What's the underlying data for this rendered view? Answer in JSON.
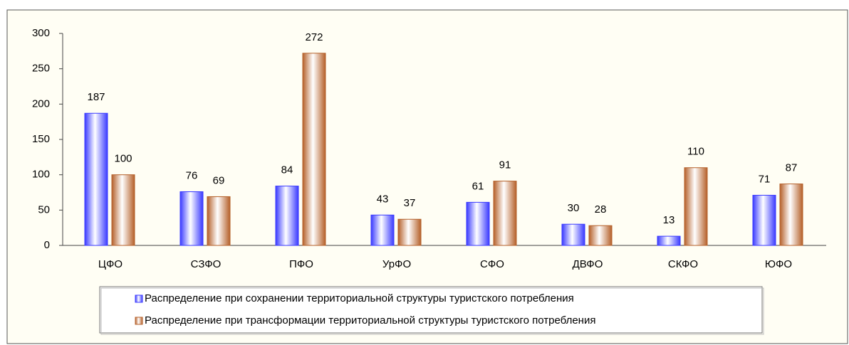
{
  "chart_data": {
    "type": "bar",
    "categories": [
      "ЦФО",
      "СЗФО",
      "ПФО",
      "УрФО",
      "СФО",
      "ДВФО",
      "СКФО",
      "ЮФО"
    ],
    "series": [
      {
        "name": "Распределение при сохранении территориальной структуры туристского потребления",
        "color": "#3a3aff",
        "values": [
          187,
          76,
          84,
          43,
          61,
          30,
          13,
          71
        ]
      },
      {
        "name": "Распределение при трансформации территориальной структуры туристского потребления",
        "color": "#b5602a",
        "values": [
          100,
          69,
          272,
          37,
          91,
          28,
          110,
          87
        ]
      }
    ],
    "ylim": [
      0,
      300
    ],
    "yticks": [
      0,
      50,
      100,
      150,
      200,
      250,
      300
    ],
    "grid": false,
    "legend": "bottom"
  }
}
